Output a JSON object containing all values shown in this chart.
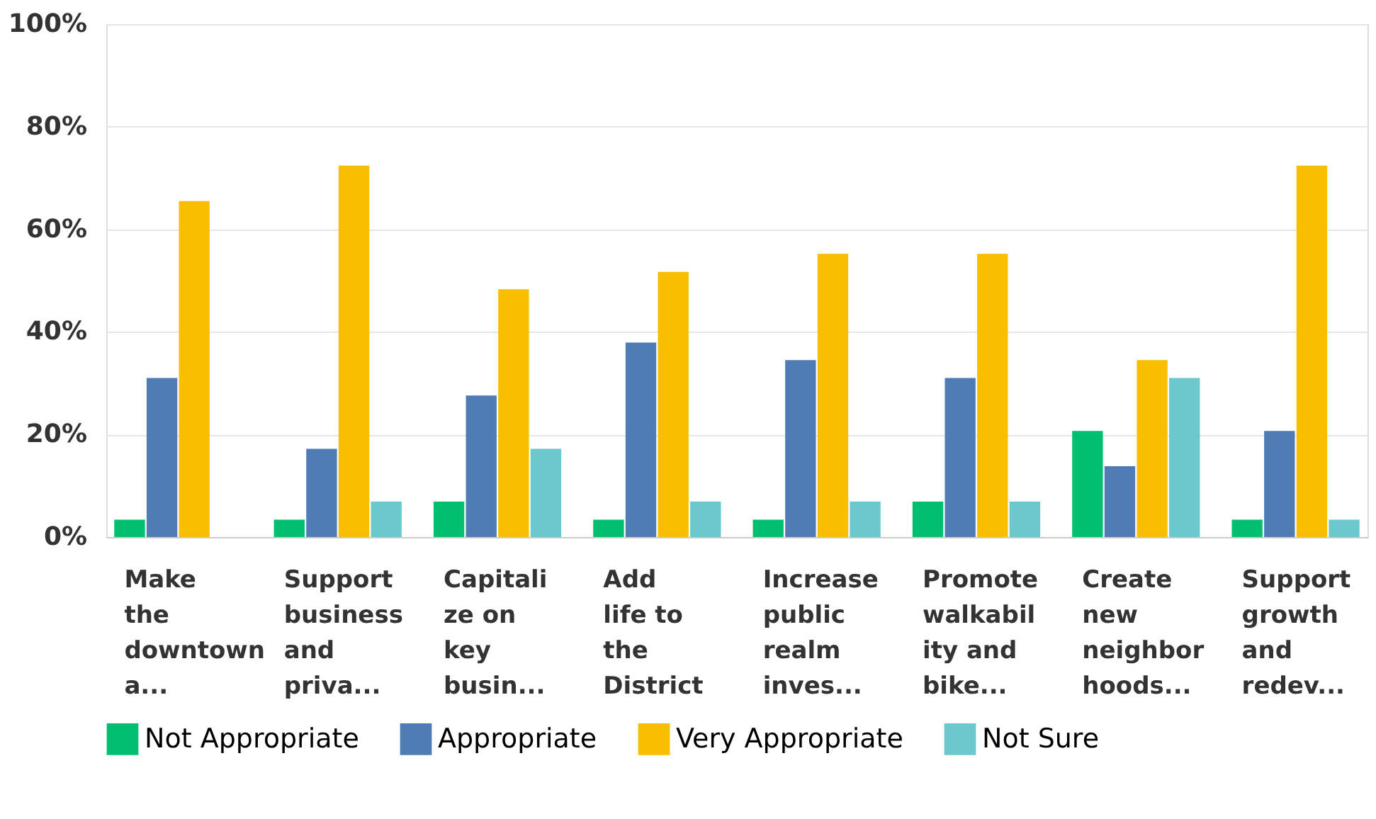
{
  "chart_data": {
    "type": "bar",
    "categories": [
      "Make\nthe\ndowntown\na...",
      "Support\nbusiness\nand\npriva...",
      "Capitali\nze on\nkey\nbusin...",
      "Add\nlife to\nthe\nDistrict",
      "Increase\npublic\nrealm\ninves...",
      "Promote\nwalkabil\nity and\nbike...",
      "Create\nnew\nneighbor\nhoods...",
      "Support\ngrowth\nand\nredev..."
    ],
    "series": [
      {
        "name": "Not Appropriate",
        "color": "#00bf6f",
        "values": [
          3.4,
          3.4,
          6.9,
          3.4,
          3.4,
          6.9,
          20.7,
          3.4
        ]
      },
      {
        "name": "Appropriate",
        "color": "#507cb6",
        "values": [
          31.0,
          17.2,
          27.6,
          37.9,
          34.5,
          31.0,
          13.8,
          20.7
        ]
      },
      {
        "name": "Very Appropriate",
        "color": "#f9be00",
        "values": [
          65.5,
          72.4,
          48.3,
          51.7,
          55.2,
          55.2,
          34.5,
          72.4
        ]
      },
      {
        "name": "Not Sure",
        "color": "#6bc8cd",
        "values": [
          0,
          6.9,
          17.2,
          6.9,
          6.9,
          6.9,
          31.0,
          3.4
        ]
      }
    ],
    "ylim": [
      0,
      100
    ],
    "yticks": [
      {
        "value": 0,
        "label": "0%"
      },
      {
        "value": 20,
        "label": "20%"
      },
      {
        "value": 40,
        "label": "40%"
      },
      {
        "value": 60,
        "label": "60%"
      },
      {
        "value": 80,
        "label": "80%"
      },
      {
        "value": 100,
        "label": "100%"
      }
    ],
    "grid": "y",
    "legend": "bottom"
  }
}
